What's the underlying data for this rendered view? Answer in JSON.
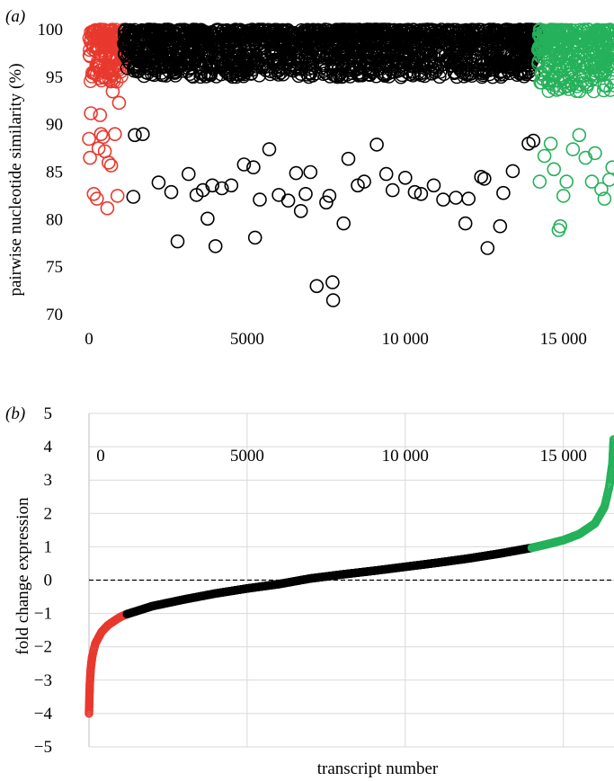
{
  "chart_data": [
    {
      "type": "scatter",
      "panel_label": "(a)",
      "ylabel": "pairwise nucleotide similarity (%)",
      "xlabel": "",
      "xlim": [
        0,
        16600
      ],
      "ylim": [
        70,
        100
      ],
      "x_ticks": [
        "0",
        "5000",
        "10 000",
        "15 000"
      ],
      "x_tick_values": [
        0,
        5000,
        10000,
        15000
      ],
      "y_ticks": [
        "70",
        "75",
        "80",
        "85",
        "90",
        "95",
        "100"
      ],
      "y_tick_values": [
        70,
        75,
        80,
        85,
        90,
        95,
        100
      ],
      "grid": false,
      "marker": "open-circle",
      "colors": {
        "low": "#e8392e",
        "mid": "#000000",
        "high": "#25b15a"
      },
      "series": [
        {
          "color_key": "low",
          "x_range": [
            0,
            1100
          ],
          "dense_band": [
            94.5,
            100
          ],
          "points": [
            [
              0,
              88.5
            ],
            [
              30,
              86.5
            ],
            [
              60,
              91.2
            ],
            [
              150,
              82.7
            ],
            [
              250,
              82.2
            ],
            [
              300,
              87.5
            ],
            [
              350,
              91.0
            ],
            [
              380,
              89.0
            ],
            [
              450,
              88.7
            ],
            [
              500,
              87.2
            ],
            [
              580,
              81.2
            ],
            [
              620,
              86.0
            ],
            [
              700,
              85.7
            ],
            [
              750,
              93.5
            ],
            [
              820,
              89.0
            ],
            [
              900,
              82.5
            ],
            [
              950,
              92.3
            ]
          ]
        },
        {
          "color_key": "mid",
          "x_range": [
            1100,
            14200
          ],
          "dense_band": [
            95,
            100
          ],
          "points": [
            [
              1400,
              82.4
            ],
            [
              1450,
              88.9
            ],
            [
              1700,
              89.0
            ],
            [
              2200,
              83.9
            ],
            [
              2600,
              82.9
            ],
            [
              2800,
              77.7
            ],
            [
              3150,
              84.8
            ],
            [
              3400,
              82.6
            ],
            [
              3600,
              83.1
            ],
            [
              3750,
              80.1
            ],
            [
              3900,
              83.6
            ],
            [
              4000,
              77.2
            ],
            [
              4200,
              83.3
            ],
            [
              4500,
              83.6
            ],
            [
              4900,
              85.8
            ],
            [
              5200,
              85.5
            ],
            [
              5250,
              78.1
            ],
            [
              5400,
              82.1
            ],
            [
              5700,
              87.4
            ],
            [
              6000,
              82.6
            ],
            [
              6300,
              82.0
            ],
            [
              6550,
              84.9
            ],
            [
              6700,
              80.9
            ],
            [
              6850,
              82.7
            ],
            [
              7000,
              85.0
            ],
            [
              7200,
              73.0
            ],
            [
              7500,
              81.8
            ],
            [
              7600,
              82.5
            ],
            [
              7700,
              73.4
            ],
            [
              7720,
              71.5
            ],
            [
              8050,
              79.6
            ],
            [
              8200,
              86.4
            ],
            [
              8500,
              83.6
            ],
            [
              8700,
              84.0
            ],
            [
              9100,
              87.9
            ],
            [
              9400,
              84.8
            ],
            [
              9600,
              83.1
            ],
            [
              10000,
              84.4
            ],
            [
              10300,
              82.9
            ],
            [
              10500,
              82.7
            ],
            [
              10900,
              83.6
            ],
            [
              11200,
              82.1
            ],
            [
              11600,
              82.3
            ],
            [
              11900,
              79.6
            ],
            [
              12000,
              82.2
            ],
            [
              12400,
              84.5
            ],
            [
              12500,
              84.3
            ],
            [
              12600,
              77.0
            ],
            [
              13000,
              79.3
            ],
            [
              13100,
              82.8
            ],
            [
              13400,
              85.1
            ],
            [
              13900,
              88.0
            ],
            [
              14050,
              88.3
            ]
          ]
        },
        {
          "color_key": "high",
          "x_range": [
            14200,
            16600
          ],
          "dense_band": [
            93.5,
            100
          ],
          "points": [
            [
              14250,
              84.0
            ],
            [
              14400,
              86.7
            ],
            [
              14600,
              88.0
            ],
            [
              14700,
              85.3
            ],
            [
              14850,
              78.9
            ],
            [
              14900,
              79.3
            ],
            [
              15000,
              82.5
            ],
            [
              15100,
              84.0
            ],
            [
              15300,
              87.4
            ],
            [
              15500,
              88.9
            ],
            [
              15700,
              86.5
            ],
            [
              15900,
              84.0
            ],
            [
              16000,
              87.0
            ],
            [
              16200,
              83.2
            ],
            [
              16300,
              82.2
            ],
            [
              16450,
              84.2
            ],
            [
              16550,
              85.5
            ]
          ]
        }
      ]
    },
    {
      "type": "line",
      "panel_label": "(b)",
      "ylabel": "fold change expression",
      "xlabel": "transcript number",
      "xlim": [
        0,
        16600
      ],
      "ylim": [
        -5,
        5
      ],
      "x_ticks": [
        "0",
        "5000",
        "10 000",
        "15 000"
      ],
      "x_tick_values": [
        0,
        5000,
        10000,
        15000
      ],
      "y_ticks": [
        "−5",
        "−4",
        "−3",
        "−2",
        "−1",
        "0",
        "1",
        "2",
        "3",
        "4",
        "5"
      ],
      "y_tick_values": [
        -5,
        -4,
        -3,
        -2,
        -1,
        0,
        1,
        2,
        3,
        4,
        5
      ],
      "grid": true,
      "reference_line": 0,
      "marker": "open-circle",
      "colors": {
        "low": "#e8392e",
        "mid": "#000000",
        "high": "#25b15a"
      },
      "series": [
        {
          "color_key": "low",
          "points": [
            [
              0,
              -4.0
            ],
            [
              10,
              -3.6
            ],
            [
              30,
              -3.0
            ],
            [
              60,
              -2.6
            ],
            [
              100,
              -2.3
            ],
            [
              200,
              -1.9
            ],
            [
              400,
              -1.55
            ],
            [
              600,
              -1.35
            ],
            [
              800,
              -1.22
            ],
            [
              1000,
              -1.1
            ],
            [
              1200,
              -1.02
            ]
          ]
        },
        {
          "color_key": "mid",
          "points": [
            [
              1200,
              -1.02
            ],
            [
              2000,
              -0.78
            ],
            [
              3000,
              -0.58
            ],
            [
              4000,
              -0.4
            ],
            [
              5000,
              -0.25
            ],
            [
              6000,
              -0.12
            ],
            [
              7000,
              0.05
            ],
            [
              8000,
              0.17
            ],
            [
              9000,
              0.28
            ],
            [
              10000,
              0.4
            ],
            [
              11000,
              0.52
            ],
            [
              12000,
              0.65
            ],
            [
              13000,
              0.8
            ],
            [
              14000,
              0.97
            ]
          ]
        },
        {
          "color_key": "high",
          "points": [
            [
              14000,
              0.97
            ],
            [
              14500,
              1.08
            ],
            [
              15000,
              1.2
            ],
            [
              15500,
              1.38
            ],
            [
              16000,
              1.7
            ],
            [
              16300,
              2.2
            ],
            [
              16450,
              2.8
            ],
            [
              16550,
              3.5
            ],
            [
              16600,
              4.4
            ]
          ]
        }
      ]
    }
  ]
}
